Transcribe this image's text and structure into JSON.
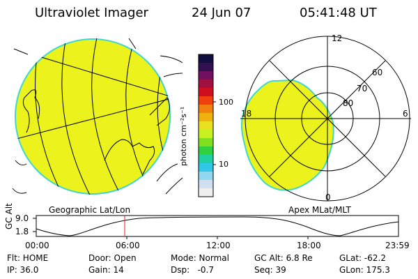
{
  "header": {
    "instrument": "Ultraviolet Imager",
    "date": "24 Jun 07",
    "time": "05:41:48 UT"
  },
  "colors": {
    "fill": "#ebf21c",
    "edge": "#3fd6d0",
    "marker": "#e02020"
  },
  "left_map": {
    "label": "Geographic Lat/Lon"
  },
  "right_map": {
    "label": "Apex MLat/MLT",
    "mlt_labels": [
      "12",
      "18",
      "6",
      "0"
    ],
    "mlat_labels": [
      "60",
      "70",
      "80"
    ]
  },
  "colorbar": {
    "unit_label": "photon cm⁻²s⁻¹",
    "ticks": [
      "100",
      "10"
    ],
    "colors": [
      "#101040",
      "#301050",
      "#701060",
      "#a01040",
      "#d01020",
      "#f04010",
      "#f08010",
      "#f0b010",
      "#e8e020",
      "#c8f020",
      "#80e020",
      "#30d040",
      "#20d0a0",
      "#30c8e8",
      "#90d8f0",
      "#d0e0f0",
      "#f0f0f0"
    ]
  },
  "timeline": {
    "y_label": "GC Alt",
    "y_ticks": [
      "9.0",
      "1.8"
    ],
    "x_ticks": [
      "00:00",
      "06:00",
      "12:00",
      "18:00",
      "23:59"
    ],
    "marker_time": "05:41"
  },
  "footer": {
    "row1": [
      "Flt: HOME",
      "Door: Open",
      "Mode: Normal",
      "GC Alt: 6.8 Re",
      "GLat: -62.2"
    ],
    "row2": [
      "IP: 36.0",
      "Gain: 14",
      "Dsp:   -0.7",
      "Seq: 39",
      "GLon: 175.3"
    ]
  }
}
